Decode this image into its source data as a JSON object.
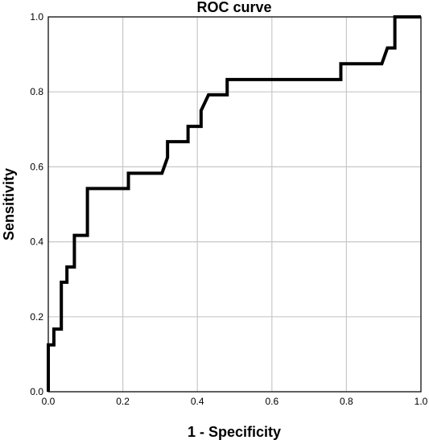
{
  "chart_data": {
    "type": "line",
    "title": "ROC curve",
    "xlabel": "1 - Specificity",
    "ylabel": "Sensitivity",
    "xlim": [
      0,
      1
    ],
    "ylim": [
      0,
      1
    ],
    "grid": true,
    "x_ticks": [
      "0.0",
      "0.2",
      "0.4",
      "0.6",
      "0.8",
      "1.0"
    ],
    "y_ticks": [
      "0.0",
      "0.2",
      "0.4",
      "0.6",
      "0.8",
      "1.0"
    ],
    "series": [
      {
        "color": "#000000",
        "x": [
          0.0,
          0.0,
          0.015,
          0.015,
          0.035,
          0.035,
          0.05,
          0.05,
          0.07,
          0.07,
          0.105,
          0.105,
          0.215,
          0.215,
          0.305,
          0.32,
          0.32,
          0.375,
          0.375,
          0.41,
          0.41,
          0.43,
          0.43,
          0.48,
          0.48,
          0.785,
          0.785,
          0.895,
          0.91,
          0.91,
          0.93,
          0.93,
          1.0
        ],
        "y": [
          0.0,
          0.125,
          0.125,
          0.167,
          0.167,
          0.292,
          0.292,
          0.333,
          0.333,
          0.417,
          0.417,
          0.542,
          0.542,
          0.583,
          0.583,
          0.625,
          0.667,
          0.667,
          0.708,
          0.708,
          0.75,
          0.792,
          0.792,
          0.792,
          0.833,
          0.833,
          0.875,
          0.875,
          0.917,
          0.917,
          0.917,
          1.0,
          1.0
        ]
      }
    ]
  }
}
